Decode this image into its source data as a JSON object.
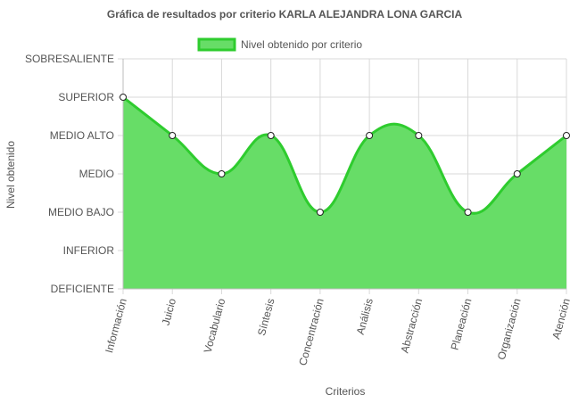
{
  "chart_data": {
    "type": "area",
    "title": "Gráfica de resultados por criterio KARLA ALEJANDRA LONA GARCIA",
    "xlabel": "Criterios",
    "ylabel": "Nivel obtenido",
    "legend": {
      "label": "Nivel obtenido por criterio",
      "placement": "top-center"
    },
    "y_levels": [
      "DEFICIENTE",
      "INFERIOR",
      "MEDIO BAJO",
      "MEDIO",
      "MEDIO ALTO",
      "SUPERIOR",
      "SOBRESALIENTE"
    ],
    "ylim": [
      0,
      6
    ],
    "grid": true,
    "categories": [
      "Información",
      "Juicio",
      "Vocabulario",
      "Síntesis",
      "Concentración",
      "Análisis",
      "Abstracción",
      "Planeación",
      "Organización",
      "Atención"
    ],
    "series": [
      {
        "name": "Nivel obtenido por criterio",
        "values": [
          5,
          4,
          3,
          4,
          2,
          4,
          4,
          2,
          3,
          4
        ]
      }
    ],
    "colors": {
      "line": "#2ecc2e",
      "fill": "#67dd67",
      "grid": "#d9d9d9",
      "text": "#555555"
    }
  }
}
